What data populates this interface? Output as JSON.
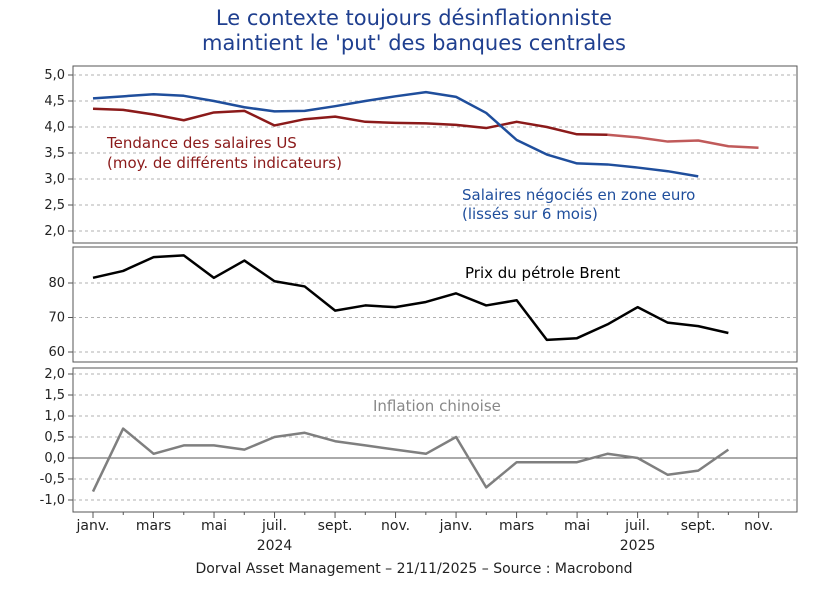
{
  "title": {
    "line1": "Le contexte toujours désinflationniste",
    "line2": "maintient le 'put' des banques centrales"
  },
  "footer": {
    "source": "Dorval Asset Management – 21/11/2025 –   Source : Macrobond"
  },
  "colors": {
    "title": "#1f3f8f",
    "us_wages": "#8b1a1a",
    "us_wages_light": "#c05a5a",
    "eu_wages": "#1f4e9c",
    "brent": "#000000",
    "china_cpi": "#7f7f7f"
  },
  "chart_data": [
    {
      "type": "line",
      "panel": "wages",
      "ylim": [
        2.0,
        5.0
      ],
      "yticks": [
        "5,0",
        "4,5",
        "4,0",
        "3,5",
        "3,0",
        "2,5",
        "2,0"
      ],
      "series": [
        {
          "name": "Tendance des salaires US",
          "label_line1": "Tendance des salaires US",
          "label_line2": "(moy. de différents indicateurs)",
          "x": [
            2024.0,
            2024.083,
            2024.167,
            2024.25,
            2024.333,
            2024.417,
            2024.5,
            2024.583,
            2024.667,
            2024.75,
            2024.833,
            2024.917,
            2025.0,
            2025.083,
            2025.167,
            2025.25,
            2025.333,
            2025.417,
            2025.5,
            2025.583,
            2025.667,
            2025.75,
            2025.833
          ],
          "values": [
            4.35,
            4.33,
            4.24,
            4.13,
            4.28,
            4.31,
            4.03,
            4.15,
            4.2,
            4.1,
            4.08,
            4.07,
            4.04,
            3.98,
            4.1,
            4.0,
            3.86,
            3.85,
            3.8,
            3.72,
            3.74,
            3.63,
            3.6
          ],
          "color": "#8b1a1a"
        },
        {
          "name": "Salaires négociés en zone euro",
          "label_line1": "Salaires négociés en zone euro",
          "label_line2": "(lissés sur 6 mois)",
          "x": [
            2024.0,
            2024.083,
            2024.167,
            2024.25,
            2024.333,
            2024.417,
            2024.5,
            2024.583,
            2024.667,
            2024.75,
            2024.833,
            2024.917,
            2025.0,
            2025.083,
            2025.167,
            2025.25,
            2025.333,
            2025.417,
            2025.5,
            2025.583,
            2025.667,
            2025.75
          ],
          "values": [
            4.55,
            4.59,
            4.63,
            4.6,
            4.5,
            4.38,
            4.3,
            4.31,
            4.4,
            4.5,
            4.59,
            4.67,
            4.58,
            4.27,
            3.75,
            3.47,
            3.3,
            3.28,
            3.22,
            3.15,
            3.05,
            null
          ],
          "color": "#1f4e9c"
        }
      ]
    },
    {
      "type": "line",
      "panel": "oil",
      "ylim": [
        58,
        88
      ],
      "yticks": [
        "80",
        "70",
        "60"
      ],
      "series": [
        {
          "name": "Prix du pétrole Brent",
          "x": [
            2024.0,
            2024.083,
            2024.167,
            2024.25,
            2024.333,
            2024.417,
            2024.5,
            2024.583,
            2024.667,
            2024.75,
            2024.833,
            2024.917,
            2025.0,
            2025.083,
            2025.167,
            2025.25,
            2025.333,
            2025.417,
            2025.5,
            2025.583,
            2025.667,
            2025.75
          ],
          "values": [
            81.5,
            83.5,
            87.5,
            88.0,
            81.5,
            86.5,
            80.5,
            79.0,
            72.0,
            73.5,
            73.0,
            74.5,
            77.0,
            73.5,
            75.0,
            63.5,
            64.0,
            68.0,
            73.0,
            68.5,
            67.5,
            65.5
          ],
          "color": "#000000"
        }
      ]
    },
    {
      "type": "line",
      "panel": "china",
      "ylim": [
        -1.2,
        2.1
      ],
      "yticks": [
        "2,0",
        "1,5",
        "1,0",
        "0,5",
        "0,0",
        "-0,5",
        "-1,0"
      ],
      "series": [
        {
          "name": "Inflation chinoise",
          "x": [
            2024.0,
            2024.083,
            2024.167,
            2024.25,
            2024.333,
            2024.417,
            2024.5,
            2024.583,
            2024.667,
            2024.75,
            2024.833,
            2024.917,
            2025.0,
            2025.083,
            2025.167,
            2025.25,
            2025.333,
            2025.417,
            2025.5,
            2025.583,
            2025.667,
            2025.75
          ],
          "values": [
            -0.8,
            0.7,
            0.1,
            0.3,
            0.3,
            0.2,
            0.5,
            0.6,
            0.4,
            0.3,
            0.2,
            0.1,
            0.5,
            -0.7,
            -0.1,
            -0.1,
            -0.1,
            0.1,
            0.0,
            -0.4,
            -0.3,
            0.2
          ],
          "color": "#7f7f7f"
        }
      ]
    }
  ],
  "x_axis": {
    "month_labels": [
      "janv.",
      "mars",
      "mai",
      "juil.",
      "sept.",
      "nov.",
      "janv.",
      "mars",
      "mai",
      "juil.",
      "sept.",
      "nov."
    ],
    "year_labels": [
      "2024",
      "2025"
    ]
  }
}
